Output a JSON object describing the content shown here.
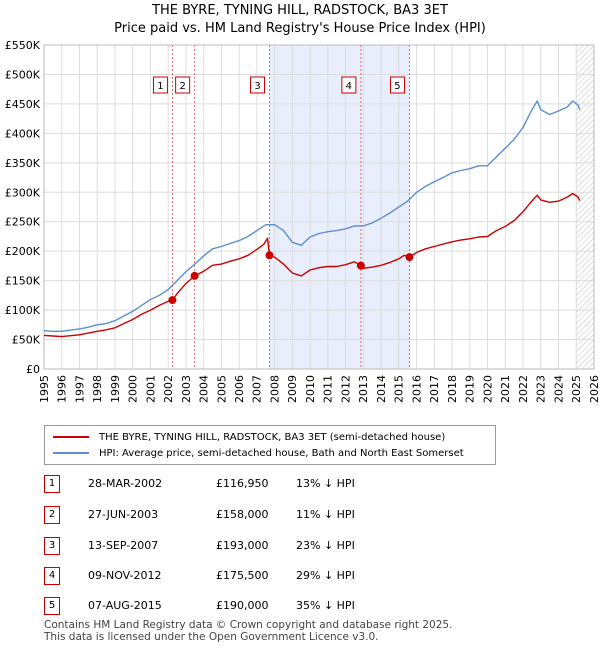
{
  "header": {
    "title": "THE BYRE, TYNING HILL, RADSTOCK, BA3 3ET",
    "subtitle": "Price paid vs. HM Land Registry's House Price Index (HPI)"
  },
  "chart_data": {
    "type": "line",
    "xlim": [
      1995,
      2026
    ],
    "ylim": [
      0,
      550000
    ],
    "x_ticks": [
      "1995",
      "1996",
      "1997",
      "1998",
      "1999",
      "2000",
      "2001",
      "2002",
      "2003",
      "2004",
      "2005",
      "2006",
      "2007",
      "2008",
      "2009",
      "2010",
      "2011",
      "2012",
      "2013",
      "2014",
      "2015",
      "2016",
      "2017",
      "2018",
      "2019",
      "2020",
      "2021",
      "2022",
      "2023",
      "2024",
      "2025",
      "2026"
    ],
    "y_ticks": [
      {
        "value": 0,
        "label": "£0"
      },
      {
        "value": 50000,
        "label": "£50K"
      },
      {
        "value": 100000,
        "label": "£100K"
      },
      {
        "value": 150000,
        "label": "£150K"
      },
      {
        "value": 200000,
        "label": "£200K"
      },
      {
        "value": 250000,
        "label": "£250K"
      },
      {
        "value": 300000,
        "label": "£300K"
      },
      {
        "value": 350000,
        "label": "£350K"
      },
      {
        "value": 400000,
        "label": "£400K"
      },
      {
        "value": 450000,
        "label": "£450K"
      },
      {
        "value": 500000,
        "label": "£500K"
      },
      {
        "value": 550000,
        "label": "£550K"
      }
    ],
    "grid": true,
    "shaded_region": [
      2007.7,
      2015.6
    ],
    "hatched_from": 2025.0,
    "series": [
      {
        "name": "THE BYRE, TYNING HILL, RADSTOCK, BA3 3ET (semi-detached house)",
        "color": "#cc0000",
        "points": [
          [
            1995.0,
            57000
          ],
          [
            1995.5,
            56000
          ],
          [
            1996.0,
            55000
          ],
          [
            1996.5,
            56500
          ],
          [
            1997.0,
            58000
          ],
          [
            1997.5,
            61000
          ],
          [
            1998.0,
            64000
          ],
          [
            1998.5,
            66500
          ],
          [
            1999.0,
            70000
          ],
          [
            1999.5,
            77000
          ],
          [
            2000.0,
            84000
          ],
          [
            2000.5,
            93000
          ],
          [
            2001.0,
            100000
          ],
          [
            2001.5,
            108000
          ],
          [
            2002.0,
            115000
          ],
          [
            2002.24,
            116950
          ],
          [
            2002.5,
            128000
          ],
          [
            2003.0,
            145000
          ],
          [
            2003.49,
            158000
          ],
          [
            2004.0,
            166000
          ],
          [
            2004.5,
            176000
          ],
          [
            2005.0,
            178000
          ],
          [
            2005.5,
            183000
          ],
          [
            2006.0,
            187000
          ],
          [
            2006.5,
            193000
          ],
          [
            2007.0,
            203000
          ],
          [
            2007.4,
            212000
          ],
          [
            2007.6,
            222000
          ],
          [
            2007.71,
            193000
          ],
          [
            2008.0,
            190000
          ],
          [
            2008.5,
            178000
          ],
          [
            2009.0,
            163000
          ],
          [
            2009.5,
            158000
          ],
          [
            2010.0,
            168000
          ],
          [
            2010.5,
            172000
          ],
          [
            2011.0,
            174000
          ],
          [
            2011.5,
            174000
          ],
          [
            2012.0,
            177000
          ],
          [
            2012.5,
            182000
          ],
          [
            2012.86,
            175500
          ],
          [
            2013.0,
            171000
          ],
          [
            2013.5,
            173000
          ],
          [
            2014.0,
            176000
          ],
          [
            2014.5,
            181000
          ],
          [
            2015.0,
            187000
          ],
          [
            2015.3,
            193000
          ],
          [
            2015.6,
            190000
          ],
          [
            2016.0,
            198000
          ],
          [
            2016.5,
            204000
          ],
          [
            2017.0,
            208000
          ],
          [
            2017.5,
            212000
          ],
          [
            2018.0,
            216000
          ],
          [
            2018.5,
            219000
          ],
          [
            2019.0,
            221000
          ],
          [
            2019.5,
            224000
          ],
          [
            2020.0,
            225000
          ],
          [
            2020.5,
            235000
          ],
          [
            2021.0,
            242000
          ],
          [
            2021.5,
            252000
          ],
          [
            2022.0,
            267000
          ],
          [
            2022.5,
            285000
          ],
          [
            2022.8,
            295000
          ],
          [
            2023.0,
            287000
          ],
          [
            2023.5,
            283000
          ],
          [
            2024.0,
            285000
          ],
          [
            2024.5,
            292000
          ],
          [
            2024.8,
            298000
          ],
          [
            2025.1,
            292000
          ],
          [
            2025.2,
            286000
          ]
        ]
      },
      {
        "name": "HPI: Average price, semi-detached house, Bath and North East Somerset",
        "color": "#5b8fd0",
        "points": [
          [
            1995.0,
            65000
          ],
          [
            1995.5,
            64000
          ],
          [
            1996.0,
            64000
          ],
          [
            1996.5,
            66000
          ],
          [
            1997.0,
            68000
          ],
          [
            1997.5,
            71000
          ],
          [
            1998.0,
            75000
          ],
          [
            1998.5,
            77000
          ],
          [
            1999.0,
            82000
          ],
          [
            1999.5,
            90000
          ],
          [
            2000.0,
            98000
          ],
          [
            2000.5,
            108000
          ],
          [
            2001.0,
            118000
          ],
          [
            2001.5,
            125000
          ],
          [
            2002.0,
            135000
          ],
          [
            2002.5,
            150000
          ],
          [
            2003.0,
            165000
          ],
          [
            2003.5,
            178000
          ],
          [
            2004.0,
            192000
          ],
          [
            2004.5,
            204000
          ],
          [
            2005.0,
            208000
          ],
          [
            2005.5,
            213000
          ],
          [
            2006.0,
            218000
          ],
          [
            2006.5,
            225000
          ],
          [
            2007.0,
            235000
          ],
          [
            2007.5,
            245000
          ],
          [
            2008.0,
            245000
          ],
          [
            2008.5,
            235000
          ],
          [
            2009.0,
            215000
          ],
          [
            2009.5,
            210000
          ],
          [
            2010.0,
            224000
          ],
          [
            2010.5,
            230000
          ],
          [
            2011.0,
            233000
          ],
          [
            2011.5,
            235000
          ],
          [
            2012.0,
            238000
          ],
          [
            2012.5,
            243000
          ],
          [
            2013.0,
            243000
          ],
          [
            2013.5,
            248000
          ],
          [
            2014.0,
            256000
          ],
          [
            2014.5,
            265000
          ],
          [
            2015.0,
            275000
          ],
          [
            2015.5,
            285000
          ],
          [
            2016.0,
            300000
          ],
          [
            2016.5,
            310000
          ],
          [
            2017.0,
            318000
          ],
          [
            2017.5,
            325000
          ],
          [
            2018.0,
            333000
          ],
          [
            2018.5,
            337000
          ],
          [
            2019.0,
            340000
          ],
          [
            2019.5,
            345000
          ],
          [
            2020.0,
            345000
          ],
          [
            2020.5,
            360000
          ],
          [
            2021.0,
            375000
          ],
          [
            2021.5,
            390000
          ],
          [
            2022.0,
            410000
          ],
          [
            2022.5,
            440000
          ],
          [
            2022.8,
            455000
          ],
          [
            2023.0,
            440000
          ],
          [
            2023.5,
            432000
          ],
          [
            2024.0,
            438000
          ],
          [
            2024.5,
            445000
          ],
          [
            2024.8,
            455000
          ],
          [
            2025.1,
            448000
          ],
          [
            2025.2,
            440000
          ]
        ]
      }
    ],
    "sales": [
      {
        "id": "1",
        "x": 2002.24,
        "value": 116950
      },
      {
        "id": "2",
        "x": 2003.49,
        "value": 158000
      },
      {
        "id": "3",
        "x": 2007.71,
        "value": 193000
      },
      {
        "id": "4",
        "x": 2012.86,
        "value": 175500
      },
      {
        "id": "5",
        "x": 2015.6,
        "value": 190000
      }
    ]
  },
  "legend": {
    "items": [
      {
        "label": "THE BYRE, TYNING HILL, RADSTOCK, BA3 3ET (semi-detached house)",
        "color": "#cc0000"
      },
      {
        "label": "HPI: Average price, semi-detached house, Bath and North East Somerset",
        "color": "#5b8fd0"
      }
    ]
  },
  "transactions": [
    {
      "id": "1",
      "date": "28-MAR-2002",
      "price": "£116,950",
      "hpi": "13% ↓ HPI"
    },
    {
      "id": "2",
      "date": "27-JUN-2003",
      "price": "£158,000",
      "hpi": "11% ↓ HPI"
    },
    {
      "id": "3",
      "date": "13-SEP-2007",
      "price": "£193,000",
      "hpi": "23% ↓ HPI"
    },
    {
      "id": "4",
      "date": "09-NOV-2012",
      "price": "£175,500",
      "hpi": "29% ↓ HPI"
    },
    {
      "id": "5",
      "date": "07-AUG-2015",
      "price": "£190,000",
      "hpi": "35% ↓ HPI"
    }
  ],
  "footer": {
    "line1": "Contains HM Land Registry data © Crown copyright and database right 2025.",
    "line2": "This data is licensed under the Open Government Licence v3.0."
  }
}
